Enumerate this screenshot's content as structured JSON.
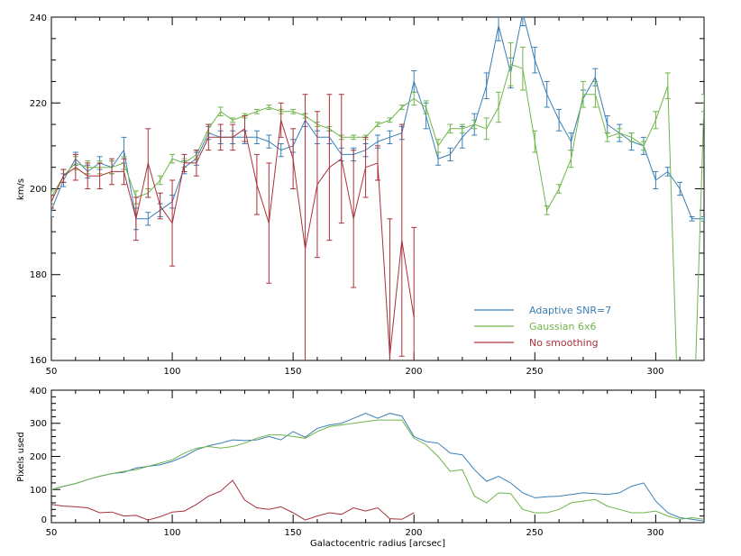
{
  "chart_data": [
    {
      "type": "line",
      "title": "",
      "xlabel": "",
      "ylabel": "km/s",
      "xlim": [
        50,
        320
      ],
      "ylim": [
        160,
        240
      ],
      "x_ticks": [
        50,
        100,
        150,
        200,
        250,
        300
      ],
      "y_ticks": [
        160,
        180,
        200,
        220,
        240
      ],
      "legend_position": "lower-right",
      "series": [
        {
          "name": "Adaptive SNR=7",
          "color": "#3a7fb5",
          "x": [
            50,
            55,
            60,
            65,
            70,
            75,
            80,
            85,
            90,
            95,
            100,
            105,
            110,
            115,
            120,
            125,
            130,
            135,
            140,
            145,
            150,
            155,
            160,
            165,
            170,
            175,
            180,
            185,
            190,
            195,
            200,
            205,
            210,
            215,
            220,
            225,
            230,
            235,
            240,
            245,
            250,
            255,
            260,
            265,
            270,
            275,
            280,
            285,
            290,
            295,
            300,
            305,
            310,
            315,
            320
          ],
          "y": [
            195,
            202,
            207,
            204,
            206,
            205,
            209,
            193,
            193,
            195,
            197,
            205,
            207,
            213,
            212,
            212,
            212,
            212,
            211,
            209,
            210,
            216,
            212,
            212,
            208,
            208,
            209,
            211,
            212,
            213,
            225,
            217,
            207,
            208,
            212,
            215,
            224,
            238,
            227,
            241,
            230,
            222,
            216,
            211,
            221,
            226,
            215,
            213,
            211,
            210,
            202,
            204,
            200,
            193,
            193
          ],
          "err": [
            1.5,
            1.5,
            1.5,
            1.5,
            1.5,
            1.5,
            3,
            2.5,
            1.5,
            1.5,
            1.5,
            1.5,
            1.5,
            1.5,
            1.5,
            1.5,
            1.5,
            1.5,
            1.5,
            1.5,
            1.5,
            1.5,
            1.5,
            1.5,
            1.5,
            1.5,
            1.5,
            1.5,
            1.5,
            1.5,
            2.5,
            3,
            1.5,
            1.5,
            2.5,
            2.5,
            3,
            3.5,
            3.5,
            3,
            3,
            3,
            2.5,
            2,
            2,
            2,
            2,
            2,
            2,
            2,
            2,
            1,
            1.5,
            0.5,
            0.5
          ]
        },
        {
          "name": "Gaussian 6x6",
          "color": "#6fb549",
          "x": [
            50,
            55,
            60,
            65,
            70,
            75,
            80,
            85,
            90,
            95,
            100,
            105,
            110,
            115,
            120,
            125,
            130,
            135,
            140,
            145,
            150,
            155,
            160,
            165,
            170,
            175,
            180,
            185,
            190,
            195,
            200,
            205,
            210,
            215,
            220,
            225,
            230,
            235,
            240,
            245,
            250,
            255,
            260,
            265,
            270,
            275,
            280,
            285,
            290,
            295,
            300,
            305,
            310,
            315,
            320
          ],
          "y": [
            198,
            203,
            206,
            205,
            205,
            205,
            206,
            198,
            199,
            202,
            207,
            206,
            208,
            214,
            218,
            216,
            217,
            218,
            219,
            218,
            218,
            217,
            215,
            214,
            212,
            212,
            212,
            215,
            216,
            219,
            221,
            219,
            210,
            214,
            214,
            215,
            214,
            219,
            229,
            228,
            211,
            195,
            200,
            207,
            222,
            222,
            212,
            213,
            212,
            210,
            216,
            224,
            135,
            133,
            220
          ],
          "err": [
            1.5,
            1.5,
            1.5,
            1.5,
            1.5,
            1.5,
            1.5,
            1.5,
            1,
            1,
            1,
            1,
            1,
            1,
            1,
            0.5,
            0.5,
            0.5,
            0.5,
            0.5,
            0.5,
            0.5,
            0.5,
            0.5,
            0.5,
            0.5,
            0.5,
            0.5,
            0.5,
            0.5,
            1.5,
            1.5,
            1.5,
            1,
            1,
            1,
            2.5,
            3.5,
            5,
            5,
            2.5,
            1,
            1,
            2,
            3,
            3,
            1,
            1,
            1,
            1,
            2,
            3,
            2,
            2,
            2
          ]
        },
        {
          "name": "No smoothing",
          "color": "#a8323a",
          "x": [
            50,
            55,
            60,
            65,
            70,
            75,
            80,
            85,
            90,
            95,
            100,
            105,
            110,
            115,
            120,
            125,
            130,
            135,
            140,
            145,
            150,
            155,
            160,
            165,
            170,
            175,
            180,
            185,
            190,
            195,
            200
          ],
          "y": [
            197,
            203,
            205,
            203,
            203,
            204,
            204,
            193,
            206,
            196,
            192,
            206,
            206,
            212,
            212,
            212,
            214,
            201,
            192,
            216,
            207,
            186,
            201,
            205,
            207,
            193,
            205,
            206,
            161,
            188,
            170
          ],
          "err": [
            1.5,
            1.5,
            3,
            3,
            3,
            3,
            3,
            5,
            8,
            3,
            10,
            2,
            3,
            3,
            3,
            3,
            3,
            7,
            14,
            4,
            7,
            36,
            17,
            17,
            15,
            16,
            7,
            4,
            32,
            27,
            21
          ]
        }
      ]
    },
    {
      "type": "line",
      "title": "",
      "xlabel": "Galactocentric radius [arcsec]",
      "ylabel": "Pixels used",
      "xlim": [
        50,
        320
      ],
      "ylim": [
        0,
        400
      ],
      "x_ticks": [
        50,
        100,
        150,
        200,
        250,
        300
      ],
      "y_ticks": [
        0,
        100,
        200,
        300,
        400
      ],
      "series": [
        {
          "color": "#3a7fb5",
          "x": [
            50,
            55,
            60,
            65,
            70,
            75,
            80,
            85,
            90,
            95,
            100,
            105,
            110,
            115,
            120,
            125,
            130,
            135,
            140,
            145,
            150,
            155,
            160,
            165,
            170,
            175,
            180,
            185,
            190,
            195,
            200,
            205,
            210,
            215,
            220,
            225,
            230,
            235,
            240,
            245,
            250,
            255,
            260,
            265,
            270,
            275,
            280,
            285,
            290,
            295,
            300,
            305,
            310,
            315,
            320
          ],
          "y": [
            100,
            110,
            118,
            130,
            140,
            148,
            152,
            165,
            170,
            175,
            185,
            200,
            220,
            232,
            240,
            250,
            248,
            250,
            260,
            250,
            275,
            258,
            285,
            295,
            300,
            315,
            330,
            315,
            330,
            322,
            260,
            245,
            240,
            210,
            205,
            160,
            125,
            140,
            120,
            90,
            75,
            78,
            80,
            85,
            90,
            88,
            85,
            90,
            110,
            120,
            65,
            30,
            15,
            10,
            5
          ]
        },
        {
          "color": "#6fb549",
          "x": [
            50,
            55,
            60,
            65,
            70,
            75,
            80,
            85,
            90,
            95,
            100,
            105,
            110,
            115,
            120,
            125,
            130,
            135,
            140,
            145,
            150,
            155,
            160,
            165,
            170,
            175,
            180,
            185,
            190,
            195,
            200,
            205,
            210,
            215,
            220,
            225,
            230,
            235,
            240,
            245,
            250,
            255,
            260,
            265,
            270,
            275,
            280,
            285,
            290,
            295,
            300,
            305,
            310,
            315,
            320
          ],
          "y": [
            100,
            110,
            118,
            130,
            140,
            148,
            155,
            160,
            170,
            180,
            190,
            210,
            225,
            230,
            225,
            230,
            240,
            255,
            265,
            265,
            260,
            255,
            275,
            290,
            295,
            300,
            305,
            310,
            310,
            310,
            255,
            235,
            200,
            155,
            160,
            80,
            60,
            90,
            88,
            40,
            30,
            30,
            40,
            60,
            65,
            70,
            50,
            40,
            30,
            30,
            35,
            20,
            10,
            15,
            10
          ]
        },
        {
          "color": "#a8323a",
          "x": [
            50,
            55,
            60,
            65,
            70,
            75,
            80,
            85,
            90,
            95,
            100,
            105,
            110,
            115,
            120,
            125,
            130,
            135,
            140,
            145,
            150,
            155,
            160,
            165,
            170,
            175,
            180,
            185,
            190,
            195,
            200
          ],
          "y": [
            55,
            50,
            48,
            45,
            30,
            32,
            20,
            22,
            8,
            18,
            32,
            35,
            55,
            80,
            95,
            128,
            68,
            45,
            40,
            48,
            30,
            8,
            20,
            30,
            25,
            45,
            35,
            45,
            12,
            10,
            30
          ]
        }
      ]
    }
  ],
  "top_panel": {
    "ylabel": "km/s",
    "x_tick_labels": [
      "50",
      "100",
      "150",
      "200",
      "250",
      "300"
    ],
    "y_tick_labels": [
      "160",
      "180",
      "200",
      "220",
      "240"
    ],
    "legend": [
      {
        "label": "Adaptive SNR=7",
        "color": "#3a7fb5"
      },
      {
        "label": "Gaussian 6x6",
        "color": "#6fb549"
      },
      {
        "label": "No smoothing",
        "color": "#a8323a"
      }
    ]
  },
  "bottom_panel": {
    "ylabel": "Pixels used",
    "xlabel": "Galactocentric radius [arcsec]",
    "x_tick_labels": [
      "50",
      "100",
      "150",
      "200",
      "250",
      "300"
    ],
    "y_tick_labels": [
      "0",
      "100",
      "200",
      "300",
      "400"
    ]
  }
}
